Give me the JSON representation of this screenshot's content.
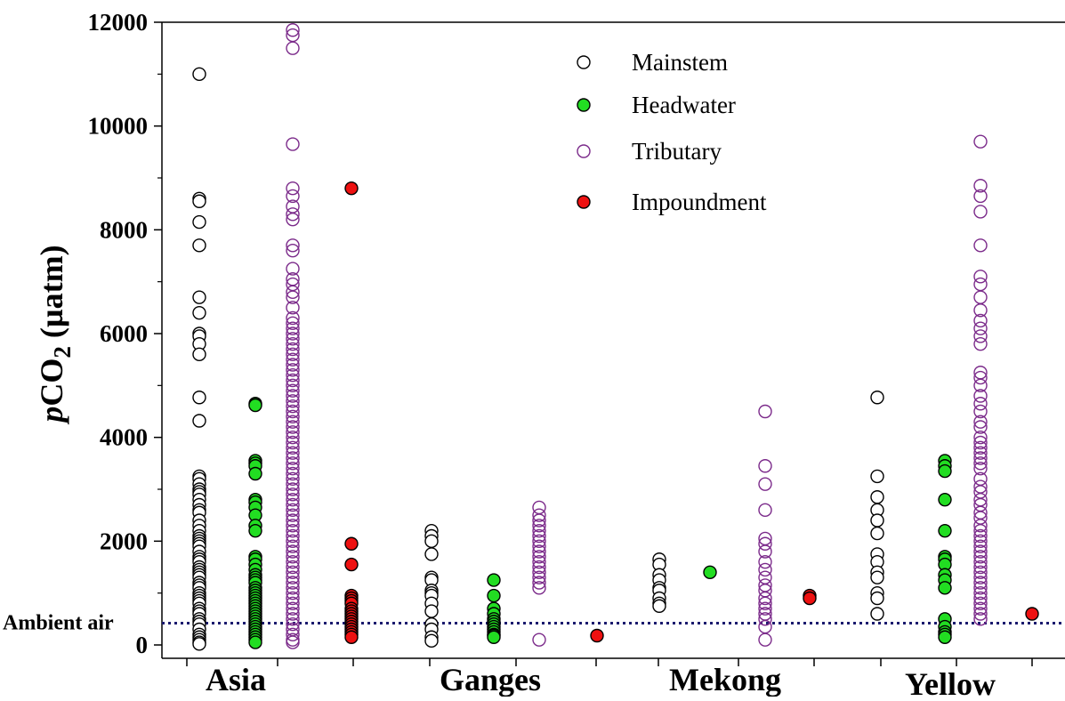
{
  "chart_data": {
    "type": "scatter",
    "title": "",
    "xlabel": "",
    "ylabel": "pCO2 (µatm)",
    "ylabel_parts": {
      "italic": "p",
      "main": "CO",
      "sub": "2",
      "unit": " (µatm)"
    },
    "ylim": [
      0,
      12000
    ],
    "y_ticks": [
      0,
      2000,
      4000,
      6000,
      8000,
      10000,
      12000
    ],
    "y_tick_labels": [
      "0",
      "2000",
      "4000",
      "6000",
      "8000",
      "10000",
      "12000"
    ],
    "grid": false,
    "legend_placement": "top-center",
    "groups": [
      "Asia",
      "Ganges",
      "Mekong",
      "Yellow"
    ],
    "ambient_air": {
      "label": "Ambient air",
      "value": 420
    },
    "series": [
      {
        "name": "Mainstem",
        "marker": "open-circle",
        "edge_color": "#000000",
        "face_color": "#ffffff",
        "points": {
          "Asia": [
            11000,
            8600,
            8550,
            8150,
            7700,
            6700,
            6400,
            6000,
            5950,
            5800,
            5600,
            4770,
            4320,
            3250,
            3200,
            3100,
            3000,
            2950,
            2900,
            2800,
            2700,
            2600,
            2550,
            2400,
            2300,
            2200,
            2100,
            2050,
            2000,
            1950,
            1900,
            1800,
            1700,
            1650,
            1600,
            1500,
            1450,
            1400,
            1350,
            1300,
            1200,
            1150,
            1100,
            1000,
            950,
            900,
            850,
            800,
            700,
            650,
            600,
            500,
            450,
            400,
            300,
            200,
            150,
            100,
            50,
            20
          ],
          "Ganges": [
            2200,
            2100,
            2000,
            1750,
            1300,
            1250,
            1050,
            1000,
            950,
            800,
            650,
            400,
            300,
            150,
            80
          ],
          "Mekong": [
            1650,
            1550,
            1350,
            1250,
            1100,
            1050,
            900,
            800,
            750
          ],
          "Yellow": [
            4770,
            3250,
            2850,
            2600,
            2400,
            2150,
            1750,
            1600,
            1400,
            1300,
            1000,
            900,
            600
          ]
        }
      },
      {
        "name": "Headwater",
        "marker": "filled-circle",
        "edge_color": "#000000",
        "face_color": "#22dd22",
        "points": {
          "Asia": [
            4650,
            4620,
            3550,
            3500,
            3450,
            3300,
            2800,
            2750,
            2650,
            2500,
            2300,
            2200,
            1700,
            1650,
            1550,
            1450,
            1350,
            1300,
            1250,
            1200,
            1100,
            1050,
            1000,
            950,
            900,
            850,
            800,
            750,
            700,
            650,
            600,
            550,
            500,
            450,
            400,
            350,
            300,
            250,
            200,
            150,
            100,
            50
          ],
          "Ganges": [
            1250,
            950,
            700,
            600,
            500,
            450,
            400,
            350,
            300,
            250,
            200,
            180,
            150
          ],
          "Mekong": [
            1400
          ],
          "Yellow": [
            3550,
            3450,
            3350,
            2800,
            2200,
            1700,
            1650,
            1550,
            1350,
            1250,
            1100,
            500,
            350,
            250,
            200,
            150
          ]
        }
      },
      {
        "name": "Tributary",
        "marker": "open-circle",
        "edge_color": "#7b2a8a",
        "face_color": "none",
        "points": {
          "Asia": [
            11850,
            11750,
            11500,
            9650,
            8800,
            8650,
            8450,
            8300,
            8200,
            7700,
            7600,
            7250,
            7050,
            6950,
            6800,
            6700,
            6500,
            6300,
            6200,
            6100,
            6000,
            5900,
            5800,
            5700,
            5600,
            5500,
            5400,
            5300,
            5200,
            5100,
            5000,
            4900,
            4800,
            4700,
            4600,
            4500,
            4400,
            4300,
            4200,
            4100,
            4000,
            3900,
            3800,
            3700,
            3600,
            3500,
            3400,
            3300,
            3200,
            3100,
            3000,
            2900,
            2800,
            2700,
            2600,
            2500,
            2400,
            2300,
            2200,
            2100,
            2000,
            1900,
            1800,
            1700,
            1600,
            1500,
            1400,
            1300,
            1200,
            1100,
            1000,
            900,
            800,
            700,
            600,
            500,
            400,
            300,
            200,
            100,
            50
          ],
          "Ganges": [
            2650,
            2500,
            2400,
            2300,
            2200,
            2100,
            2000,
            1900,
            1800,
            1700,
            1600,
            1500,
            1400,
            1300,
            1200,
            1100,
            100
          ],
          "Mekong": [
            4500,
            3450,
            3100,
            2600,
            2050,
            1950,
            1800,
            1600,
            1450,
            1300,
            1150,
            1050,
            900,
            800,
            700,
            600,
            500,
            350,
            100
          ],
          "Yellow": [
            9700,
            8850,
            8650,
            8350,
            7700,
            7100,
            6950,
            6700,
            6450,
            6250,
            6100,
            5950,
            5800,
            5250,
            5150,
            5000,
            4800,
            4650,
            4500,
            4300,
            4200,
            4000,
            3900,
            3800,
            3700,
            3600,
            3500,
            3400,
            3200,
            3050,
            2950,
            2800,
            2700,
            2550,
            2450,
            2300,
            2200,
            2100,
            2000,
            1900,
            1800,
            1700,
            1600,
            1500,
            1400,
            1300,
            1200,
            1100,
            1000,
            900,
            800,
            700,
            600,
            500
          ]
        }
      },
      {
        "name": "Impoundment",
        "marker": "filled-circle",
        "edge_color": "#000000",
        "face_color": "#ee1111",
        "points": {
          "Asia": [
            8800,
            1950,
            1550,
            950,
            900,
            850,
            800,
            700,
            650,
            600,
            550,
            500,
            450,
            400,
            350,
            300,
            250,
            200,
            150
          ],
          "Ganges": [
            180
          ],
          "Mekong": [
            950,
            900
          ],
          "Yellow": [
            600
          ]
        }
      }
    ]
  }
}
